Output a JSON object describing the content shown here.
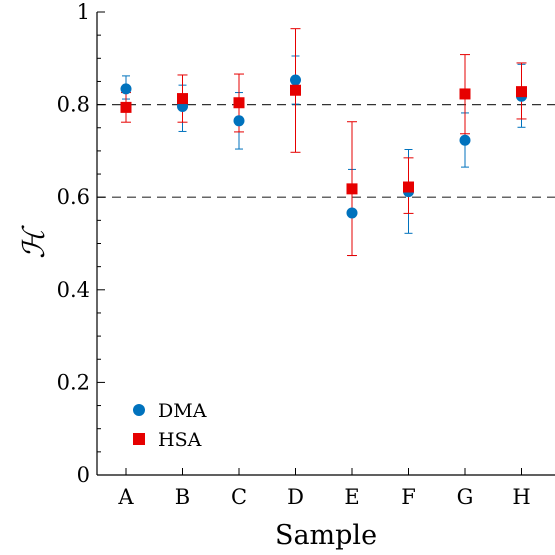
{
  "chart_data": {
    "type": "scatter",
    "title": "",
    "xlabel": "Sample",
    "ylabel": "ℋ",
    "categories": [
      "A",
      "B",
      "C",
      "D",
      "E",
      "F",
      "G",
      "H"
    ],
    "ylim": [
      0,
      1
    ],
    "yticks": [
      "0",
      "0.2",
      "0.4",
      "0.6",
      "0.8",
      "1"
    ],
    "reference_lines": [
      0.6,
      0.8
    ],
    "grid": false,
    "legend_position": "bottom-left",
    "series": [
      {
        "name": "DMA",
        "marker": "circle",
        "color": "#0072BD",
        "values": [
          0.834,
          0.796,
          0.765,
          0.853,
          0.566,
          0.612,
          0.723,
          0.818
        ],
        "err_low": [
          0.812,
          0.742,
          0.704,
          0.801,
          0.474,
          0.522,
          0.665,
          0.751
        ],
        "err_high": [
          0.862,
          0.842,
          0.826,
          0.905,
          0.66,
          0.703,
          0.782,
          0.887
        ]
      },
      {
        "name": "HSA",
        "marker": "square",
        "color": "#E60000",
        "values": [
          0.794,
          0.813,
          0.804,
          0.831,
          0.618,
          0.622,
          0.823,
          0.828
        ],
        "err_low": [
          0.762,
          0.762,
          0.741,
          0.697,
          0.474,
          0.565,
          0.737,
          0.769
        ],
        "err_high": [
          0.826,
          0.864,
          0.866,
          0.964,
          0.763,
          0.685,
          0.908,
          0.89
        ]
      }
    ]
  }
}
